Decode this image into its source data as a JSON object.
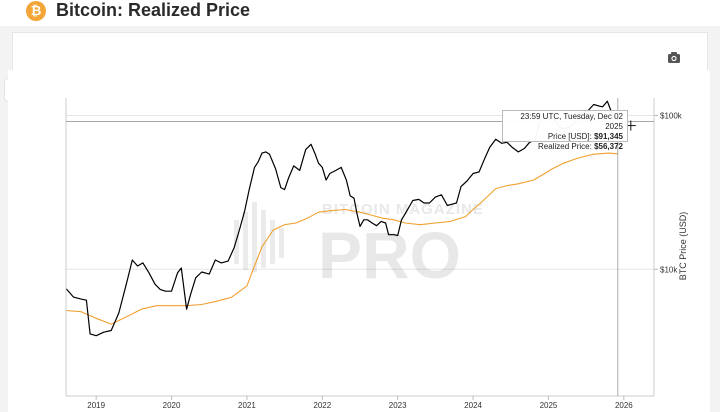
{
  "header": {
    "title": "Bitcoin: Realized Price",
    "icon_glyph": "₿",
    "icon_name": "bitcoin-logo-icon"
  },
  "toolbar": {
    "camera_icon": "camera-icon",
    "sidebar_icon": "sidebar-toggle-icon"
  },
  "watermark": {
    "line1": "BITCOIN MAGAZINE",
    "line2": "PRO"
  },
  "tooltip": {
    "date": "23:59 UTC, Tuesday, Dec 02 2025",
    "price_label": "Price [USD]:",
    "price_value": "$91,345",
    "realized_label": "Realized Price:",
    "realized_value": "$56,372"
  },
  "colors": {
    "price_line": "#000000",
    "realized_line": "#f0a030",
    "brand": "#f4a537"
  },
  "chart_data": {
    "type": "line",
    "title": "Bitcoin: Realized Price",
    "xlabel": "",
    "ylabel": "BTC Price (USD)",
    "yscale": "log",
    "ylim": [
      1500,
      130000
    ],
    "xlim": [
      2018.6,
      2026.4
    ],
    "x_ticks": [
      2019,
      2020,
      2021,
      2022,
      2023,
      2024,
      2025,
      2026
    ],
    "x_tick_labels": [
      "2019",
      "2020",
      "2021",
      "2022",
      "2023",
      "2024",
      "2025",
      "2026"
    ],
    "y_ticks": [
      10000,
      100000
    ],
    "y_tick_labels": [
      "$10k",
      "$100k"
    ],
    "hover_x": 2025.92,
    "hover_y": 91345,
    "series": [
      {
        "name": "Price [USD]",
        "color": "#000000",
        "x": [
          2018.6,
          2018.7,
          2018.8,
          2018.87,
          2018.92,
          2019.0,
          2019.1,
          2019.2,
          2019.3,
          2019.4,
          2019.48,
          2019.55,
          2019.62,
          2019.7,
          2019.78,
          2019.85,
          2019.92,
          2020.0,
          2020.08,
          2020.13,
          2020.2,
          2020.25,
          2020.32,
          2020.4,
          2020.5,
          2020.58,
          2020.66,
          2020.75,
          2020.83,
          2020.9,
          2020.97,
          2021.03,
          2021.1,
          2021.15,
          2021.2,
          2021.25,
          2021.3,
          2021.38,
          2021.45,
          2021.5,
          2021.55,
          2021.62,
          2021.7,
          2021.78,
          2021.85,
          2021.9,
          2021.95,
          2022.0,
          2022.05,
          2022.1,
          2022.18,
          2022.25,
          2022.32,
          2022.37,
          2022.42,
          2022.46,
          2022.5,
          2022.55,
          2022.6,
          2022.66,
          2022.72,
          2022.78,
          2022.84,
          2022.88,
          2022.95,
          2023.0,
          2023.05,
          2023.1,
          2023.2,
          2023.28,
          2023.35,
          2023.42,
          2023.5,
          2023.58,
          2023.66,
          2023.72,
          2023.78,
          2023.84,
          2023.92,
          2024.0,
          2024.08,
          2024.15,
          2024.22,
          2024.3,
          2024.38,
          2024.45,
          2024.52,
          2024.6,
          2024.68,
          2024.75,
          2024.82,
          2024.88,
          2024.95,
          2025.0,
          2025.08,
          2025.15,
          2025.22,
          2025.3,
          2025.38,
          2025.45,
          2025.52,
          2025.6,
          2025.68,
          2025.72,
          2025.78,
          2025.84,
          2025.88,
          2025.92
        ],
        "values": [
          7500,
          6600,
          6400,
          6300,
          3800,
          3700,
          3900,
          4000,
          5200,
          8000,
          11500,
          10500,
          11000,
          9500,
          8000,
          7400,
          7200,
          7200,
          9500,
          10200,
          5500,
          6800,
          8800,
          9600,
          9300,
          11500,
          11000,
          11300,
          13800,
          18000,
          24000,
          33000,
          46000,
          50000,
          57000,
          58000,
          56000,
          45000,
          34000,
          33000,
          39000,
          47000,
          44000,
          60000,
          65000,
          57000,
          49000,
          46000,
          38000,
          42000,
          44000,
          46000,
          38000,
          30000,
          29000,
          23000,
          19000,
          21000,
          21000,
          20000,
          19200,
          20500,
          20000,
          16800,
          16800,
          16600,
          21000,
          23000,
          28000,
          28500,
          27000,
          27000,
          29500,
          30500,
          26000,
          26500,
          27000,
          34500,
          37500,
          42000,
          43000,
          52000,
          62000,
          70000,
          66000,
          67000,
          62000,
          58000,
          61000,
          67000,
          69000,
          90000,
          98000,
          97000,
          95000,
          84000,
          82000,
          85000,
          94000,
          105000,
          107000,
          118000,
          115000,
          114000,
          124000,
          104000,
          88000,
          91345
        ]
      },
      {
        "name": "Realized Price",
        "color": "#f0a030",
        "x": [
          2018.6,
          2018.8,
          2019.0,
          2019.2,
          2019.4,
          2019.6,
          2019.8,
          2020.0,
          2020.2,
          2020.4,
          2020.6,
          2020.8,
          2021.0,
          2021.1,
          2021.2,
          2021.35,
          2021.5,
          2021.65,
          2021.8,
          2021.95,
          2022.1,
          2022.3,
          2022.5,
          2022.65,
          2022.8,
          2022.95,
          2023.1,
          2023.3,
          2023.5,
          2023.7,
          2023.9,
          2024.0,
          2024.1,
          2024.2,
          2024.3,
          2024.45,
          2024.6,
          2024.8,
          2024.95,
          2025.05,
          2025.2,
          2025.4,
          2025.6,
          2025.8,
          2025.92
        ],
        "values": [
          5400,
          5300,
          4800,
          4400,
          4900,
          5500,
          5800,
          5800,
          5800,
          5900,
          6200,
          6600,
          7800,
          10500,
          14000,
          18000,
          19500,
          20000,
          21500,
          23500,
          24000,
          24500,
          23500,
          22500,
          21500,
          21000,
          20000,
          19500,
          20000,
          20500,
          22000,
          24500,
          27000,
          30000,
          33500,
          35000,
          36000,
          38000,
          42000,
          45000,
          49000,
          53000,
          56000,
          57000,
          56372
        ]
      }
    ]
  }
}
